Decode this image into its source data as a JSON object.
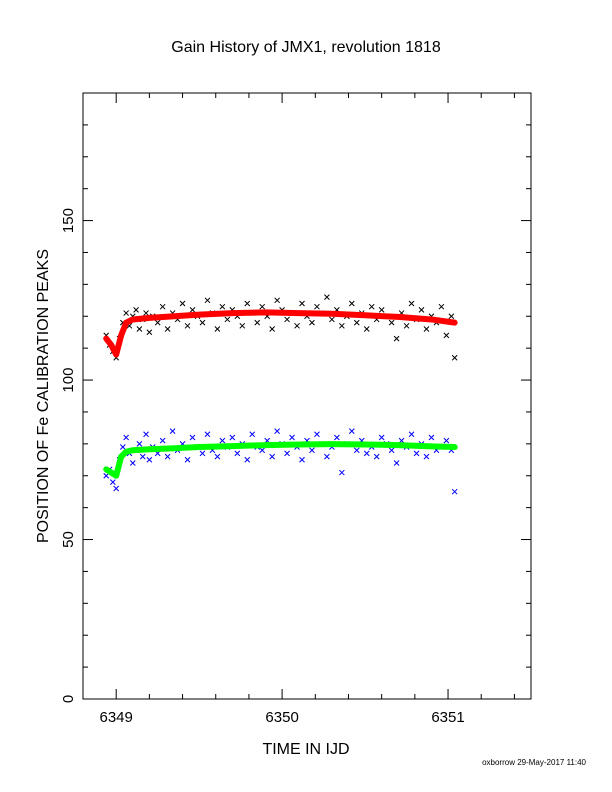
{
  "footer": {
    "credit": "oxborrow 29-May-2017 11:40"
  },
  "chart_data": {
    "type": "scatter",
    "title": "Gain History of JMX1, revolution 1818",
    "xlabel": "TIME IN IJD",
    "ylabel": "POSITION OF Fe CALIBRATION PEAKS",
    "xlim": [
      6348.8,
      6351.5
    ],
    "ylim": [
      0,
      190
    ],
    "x_ticks": [
      6349,
      6350,
      6351
    ],
    "y_ticks": [
      0,
      50,
      100,
      150
    ],
    "grid": false,
    "legend": "none",
    "series": [
      {
        "marker": "x",
        "color": "#000000",
        "x": [
          6348.94,
          6348.96,
          6348.98,
          6349.0,
          6349.02,
          6349.04,
          6349.06,
          6349.08,
          6349.1,
          6349.12,
          6349.14,
          6349.16,
          6349.18,
          6349.2,
          6349.22,
          6349.25,
          6349.28,
          6349.31,
          6349.34,
          6349.37,
          6349.4,
          6349.43,
          6349.46,
          6349.49,
          6349.52,
          6349.55,
          6349.58,
          6349.61,
          6349.64,
          6349.67,
          6349.7,
          6349.73,
          6349.76,
          6349.79,
          6349.82,
          6349.85,
          6349.88,
          6349.91,
          6349.94,
          6349.97,
          6350.0,
          6350.03,
          6350.06,
          6350.09,
          6350.12,
          6350.15,
          6350.18,
          6350.21,
          6350.24,
          6350.27,
          6350.3,
          6350.33,
          6350.36,
          6350.39,
          6350.42,
          6350.45,
          6350.48,
          6350.51,
          6350.54,
          6350.57,
          6350.6,
          6350.63,
          6350.66,
          6350.69,
          6350.72,
          6350.75,
          6350.78,
          6350.81,
          6350.84,
          6350.87,
          6350.9,
          6350.93,
          6350.96,
          6350.99,
          6351.02,
          6351.04
        ],
        "y": [
          114,
          111,
          109,
          107,
          113,
          118,
          121,
          117,
          120,
          122,
          116,
          119,
          121,
          115,
          120,
          118,
          123,
          116,
          121,
          119,
          124,
          117,
          122,
          120,
          118,
          125,
          121,
          116,
          123,
          119,
          122,
          120,
          117,
          124,
          121,
          118,
          123,
          120,
          116,
          125,
          122,
          119,
          121,
          117,
          124,
          120,
          118,
          123,
          121,
          126,
          119,
          122,
          117,
          120,
          124,
          118,
          121,
          116,
          123,
          119,
          122,
          120,
          118,
          113,
          121,
          117,
          124,
          119,
          122,
          116,
          120,
          118,
          123,
          114,
          120,
          107
        ]
      },
      {
        "marker": "x",
        "color": "#0000ff",
        "x": [
          6348.94,
          6348.96,
          6348.98,
          6349.0,
          6349.02,
          6349.04,
          6349.06,
          6349.08,
          6349.1,
          6349.12,
          6349.14,
          6349.16,
          6349.18,
          6349.2,
          6349.22,
          6349.25,
          6349.28,
          6349.31,
          6349.34,
          6349.37,
          6349.4,
          6349.43,
          6349.46,
          6349.49,
          6349.52,
          6349.55,
          6349.58,
          6349.61,
          6349.64,
          6349.67,
          6349.7,
          6349.73,
          6349.76,
          6349.79,
          6349.82,
          6349.85,
          6349.88,
          6349.91,
          6349.94,
          6349.97,
          6350.0,
          6350.03,
          6350.06,
          6350.09,
          6350.12,
          6350.15,
          6350.18,
          6350.21,
          6350.24,
          6350.27,
          6350.3,
          6350.33,
          6350.36,
          6350.39,
          6350.42,
          6350.45,
          6350.48,
          6350.51,
          6350.54,
          6350.57,
          6350.6,
          6350.63,
          6350.66,
          6350.69,
          6350.72,
          6350.75,
          6350.78,
          6350.81,
          6350.84,
          6350.87,
          6350.9,
          6350.93,
          6350.96,
          6350.99,
          6351.02,
          6351.04
        ],
        "y": [
          70,
          72,
          68,
          66,
          75,
          79,
          82,
          77,
          74,
          78,
          80,
          76,
          83,
          75,
          79,
          77,
          81,
          76,
          84,
          78,
          80,
          75,
          82,
          79,
          77,
          83,
          78,
          76,
          81,
          79,
          82,
          77,
          80,
          75,
          83,
          79,
          78,
          81,
          76,
          84,
          80,
          77,
          82,
          79,
          75,
          81,
          78,
          83,
          80,
          76,
          79,
          82,
          71,
          80,
          84,
          78,
          81,
          77,
          79,
          76,
          82,
          80,
          78,
          74,
          81,
          79,
          83,
          77,
          80,
          76,
          82,
          78,
          79,
          81,
          78,
          65
        ]
      },
      {
        "marker": "line",
        "color": "#ff0000",
        "x": [
          6348.94,
          6348.97,
          6349.0,
          6349.03,
          6349.06,
          6349.1,
          6349.2,
          6349.35,
          6349.5,
          6349.7,
          6349.9,
          6350.1,
          6350.3,
          6350.5,
          6350.7,
          6350.9,
          6351.04
        ],
        "y": [
          113,
          111,
          108,
          114,
          118,
          119,
          119.5,
          120,
          120.5,
          121,
          121.2,
          121,
          120.8,
          120.3,
          119.8,
          119,
          118
        ]
      },
      {
        "marker": "line",
        "color": "#00ff00",
        "x": [
          6348.94,
          6348.97,
          6349.0,
          6349.03,
          6349.06,
          6349.1,
          6349.2,
          6349.35,
          6349.5,
          6349.7,
          6349.9,
          6350.1,
          6350.3,
          6350.5,
          6350.7,
          6350.9,
          6351.04
        ],
        "y": [
          72,
          71,
          70,
          76,
          77.5,
          78,
          78.3,
          78.6,
          79,
          79.3,
          79.6,
          79.8,
          79.9,
          79.8,
          79.6,
          79.2,
          79
        ]
      }
    ]
  }
}
